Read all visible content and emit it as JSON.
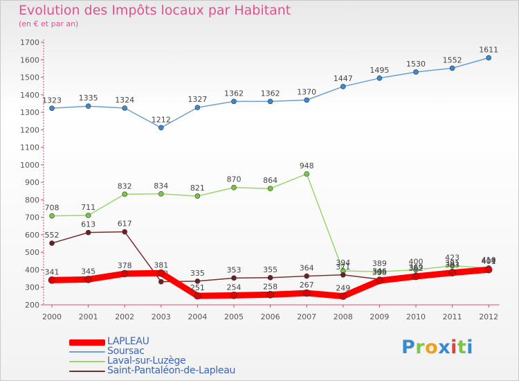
{
  "chart_data": {
    "type": "line",
    "title": "Evolution des Impôts locaux par Habitant",
    "subtitle": "(en € et par an)",
    "xlabel": "",
    "ylabel": "",
    "ylim": [
      200,
      1700
    ],
    "yticks": [
      200,
      300,
      400,
      500,
      600,
      700,
      800,
      900,
      1000,
      1100,
      1200,
      1300,
      1400,
      1500,
      1600,
      1700
    ],
    "categories": [
      "2000",
      "2001",
      "2002",
      "2003",
      "2004",
      "2005",
      "2006",
      "2007",
      "2008",
      "2009",
      "2010",
      "2011",
      "2012"
    ],
    "series": [
      {
        "name": "Soursac",
        "color": "#6a9fd4",
        "marker": "#3a8ad0",
        "values": [
          1323,
          1335,
          1324,
          1212,
          1327,
          1362,
          1362,
          1370,
          1447,
          1495,
          1530,
          1552,
          1611
        ],
        "labels": [
          "1323",
          "1335",
          "1324",
          "1212",
          "1327",
          "1362",
          "1362",
          "1370",
          "1447",
          "1495",
          "1530",
          "1552",
          "1611"
        ]
      },
      {
        "name": "Laval-sur-Luzège",
        "color": "#9ad66a",
        "marker": "#7cc44a",
        "values": [
          708,
          711,
          832,
          834,
          821,
          870,
          864,
          948,
          394,
          389,
          400,
          423,
          410
        ],
        "labels": [
          "708",
          "711",
          "832",
          "834",
          "821",
          "870",
          "864",
          "948",
          "394",
          "389",
          "400",
          "423",
          "410"
        ]
      },
      {
        "name": "Saint-Pantaléon-de-Lapleau",
        "color": "#7a2a2a",
        "marker": "#6e2020",
        "values": [
          552,
          613,
          617,
          332,
          335,
          353,
          355,
          364,
          371,
          346,
          369,
          391,
          404
        ],
        "labels": [
          "552",
          "613",
          "617",
          "332",
          "335",
          "353",
          "355",
          "364",
          "371",
          "346",
          "369",
          "391",
          "404"
        ]
      },
      {
        "name": "LAPLEAU",
        "color": "#ff0000",
        "marker": "#e00000",
        "values": [
          341,
          345,
          378,
          381,
          251,
          254,
          258,
          267,
          249,
          338,
          362,
          383,
          401
        ],
        "labels": [
          "341",
          "345",
          "378",
          "381",
          "251",
          "254",
          "258",
          "267",
          "249",
          "338",
          "362",
          "383",
          "401"
        ]
      }
    ],
    "legend": [
      "LAPLEAU",
      "Soursac",
      "Laval-sur-Luzège",
      "Saint-Pantaléon-de-Lapleau"
    ],
    "legend_colors": [
      "#ff0000",
      "#6a9fd4",
      "#9ad66a",
      "#7a2a2a"
    ],
    "grid": false
  },
  "brand": "Proxiti"
}
